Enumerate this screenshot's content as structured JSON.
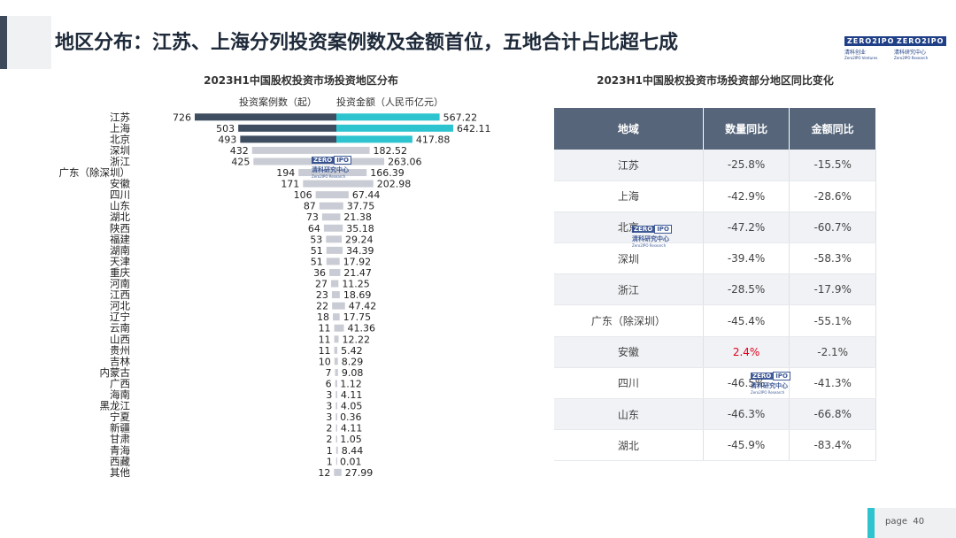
{
  "title": "地区分布：江苏、上海分列投资案例数及金额首位，五地合计占比超七成",
  "logos": [
    {
      "badge": "ZERO2IPO",
      "cn": "清科创业",
      "en": "Zero2IPO Ventures"
    },
    {
      "badge": "ZERO2IPO",
      "cn": "清科研究中心",
      "en": "Zero2IPO Research"
    }
  ],
  "watermark": {
    "badge_left": "ZERO",
    "badge_right": "IPO",
    "cn": "清科研究中心",
    "en": "Zero2IPO Research"
  },
  "chart_data": {
    "type": "bar",
    "title": "2023H1中国股权投资市场投资地区分布",
    "legend": [
      {
        "name": "投资案例数（起）",
        "position": "left"
      },
      {
        "name": "投资金额（人民币亿元）",
        "position": "right"
      }
    ],
    "categories": [
      "江苏",
      "上海",
      "北京",
      "深圳",
      "浙江",
      "广东（除深圳）",
      "安徽",
      "四川",
      "山东",
      "湖北",
      "陕西",
      "福建",
      "湖南",
      "天津",
      "重庆",
      "河南",
      "江西",
      "河北",
      "辽宁",
      "云南",
      "山西",
      "贵州",
      "吉林",
      "内蒙古",
      "广西",
      "海南",
      "黑龙江",
      "宁夏",
      "新疆",
      "甘肃",
      "青海",
      "西藏",
      "其他"
    ],
    "series": [
      {
        "name": "投资案例数（起）",
        "values": [
          726,
          503,
          493,
          432,
          425,
          194,
          171,
          106,
          87,
          73,
          64,
          53,
          51,
          51,
          36,
          27,
          23,
          22,
          18,
          11,
          11,
          11,
          10,
          7,
          6,
          3,
          3,
          3,
          2,
          2,
          1,
          1,
          12
        ]
      },
      {
        "name": "投资金额（人民币亿元）",
        "values": [
          "567.22",
          "642.11",
          "417.88",
          "182.52",
          "263.06",
          "166.39",
          "202.98",
          "67.44",
          "37.75",
          "21.38",
          "35.18",
          "29.24",
          "34.39",
          "17.92",
          "21.47",
          "11.25",
          "18.69",
          "47.42",
          "17.75",
          "41.36",
          "12.22",
          "5.42",
          "8.29",
          "9.08",
          "1.12",
          "4.11",
          "4.05",
          "0.36",
          "4.11",
          "1.05",
          "8.44",
          "0.01",
          "27.99"
        ]
      }
    ],
    "colors": {
      "top_left": "#3f4d60",
      "rest_left": "#c9ccd4",
      "top_right": "#2ec4cf",
      "rest_right": "#c9ccd4"
    }
  },
  "table": {
    "title": "2023H1中国股权投资市场投资部分地区同比变化",
    "headers": [
      "地域",
      "数量同比",
      "金额同比"
    ],
    "rows": [
      [
        "江苏",
        "-25.8%",
        "-15.5%"
      ],
      [
        "上海",
        "-42.9%",
        "-28.6%"
      ],
      [
        "北京",
        "-47.2%",
        "-60.7%"
      ],
      [
        "深圳",
        "-39.4%",
        "-58.3%"
      ],
      [
        "浙江",
        "-28.5%",
        "-17.9%"
      ],
      [
        "广东（除深圳）",
        "-45.4%",
        "-55.1%"
      ],
      [
        "安徽",
        "2.4%",
        "-2.1%"
      ],
      [
        "四川",
        "-46.5%",
        "-41.3%"
      ],
      [
        "山东",
        "-46.3%",
        "-66.8%"
      ],
      [
        "湖北",
        "-45.9%",
        "-83.4%"
      ]
    ]
  },
  "page": {
    "label": "page",
    "number": "40"
  }
}
